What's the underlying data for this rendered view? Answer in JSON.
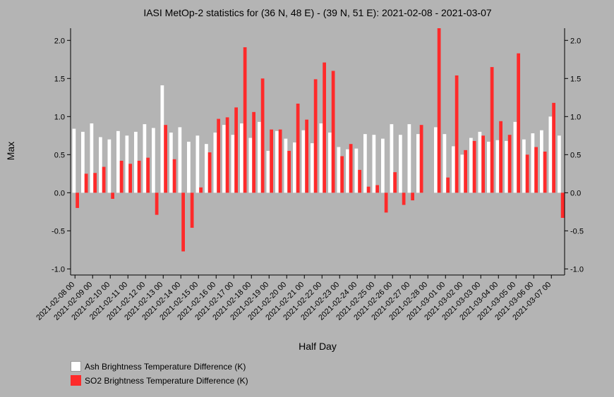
{
  "chart_data": {
    "type": "bar",
    "title": "IASI MetOp-2 statistics for (36 N, 48 E) - (39 N, 51 E): 2021-02-08 - 2021-03-07",
    "xlabel": "Half Day",
    "ylabel": "Max",
    "ylim": [
      -1.08,
      2.16
    ],
    "yticks": [
      "2.0",
      "1.5",
      "1.0",
      "0.5",
      "0.0",
      "-0.5",
      "-1.0"
    ],
    "ytick_values": [
      2.0,
      1.5,
      1.0,
      0.5,
      0.0,
      -0.5,
      -1.0
    ],
    "xtick_labels": [
      "2021-02-08 00",
      "2021-02-09 00",
      "2021-02-10 00",
      "2021-02-11 00",
      "2021-02-12 00",
      "2021-02-13 00",
      "2021-02-14 00",
      "2021-02-15 00",
      "2021-02-16 00",
      "2021-02-17 00",
      "2021-02-18 00",
      "2021-02-19 00",
      "2021-02-20 00",
      "2021-02-21 00",
      "2021-02-22 00",
      "2021-02-23 00",
      "2021-02-24 00",
      "2021-02-25 00",
      "2021-02-26 00",
      "2021-02-27 00",
      "2021-02-28 00",
      "2021-03-01 00",
      "2021-03-02 00",
      "2021-03-03 00",
      "2021-03-04 00",
      "2021-03-05 00",
      "2021-03-06 00",
      "2021-03-07 00"
    ],
    "categories": [
      "2021-02-08 00",
      "2021-02-08 12",
      "2021-02-09 00",
      "2021-02-09 12",
      "2021-02-10 00",
      "2021-02-10 12",
      "2021-02-11 00",
      "2021-02-11 12",
      "2021-02-12 00",
      "2021-02-12 12",
      "2021-02-13 00",
      "2021-02-13 12",
      "2021-02-14 00",
      "2021-02-14 12",
      "2021-02-15 00",
      "2021-02-15 12",
      "2021-02-16 00",
      "2021-02-16 12",
      "2021-02-17 00",
      "2021-02-17 12",
      "2021-02-18 00",
      "2021-02-18 12",
      "2021-02-19 00",
      "2021-02-19 12",
      "2021-02-20 00",
      "2021-02-20 12",
      "2021-02-21 00",
      "2021-02-21 12",
      "2021-02-22 00",
      "2021-02-22 12",
      "2021-02-23 00",
      "2021-02-23 12",
      "2021-02-24 00",
      "2021-02-24 12",
      "2021-02-25 00",
      "2021-02-25 12",
      "2021-02-26 00",
      "2021-02-26 12",
      "2021-02-27 00",
      "2021-02-27 12",
      "2021-02-28 00",
      "2021-02-28 12",
      "2021-03-01 00",
      "2021-03-01 12",
      "2021-03-02 00",
      "2021-03-02 12",
      "2021-03-03 00",
      "2021-03-03 12",
      "2021-03-04 00",
      "2021-03-04 12",
      "2021-03-05 00",
      "2021-03-05 12",
      "2021-03-06 00",
      "2021-03-06 12",
      "2021-03-07 00",
      "2021-03-07 12"
    ],
    "series": [
      {
        "name": "Ash Brightness Temperature Difference (K)",
        "color": "#ffffff",
        "values": [
          0.84,
          0.8,
          0.91,
          0.73,
          0.7,
          0.81,
          0.75,
          0.8,
          0.9,
          0.85,
          1.41,
          0.79,
          0.86,
          0.67,
          0.75,
          0.64,
          0.79,
          0.89,
          0.76,
          0.91,
          0.72,
          0.93,
          0.55,
          0.81,
          0.71,
          0.66,
          0.82,
          0.65,
          0.91,
          0.79,
          0.6,
          0.57,
          0.58,
          0.77,
          0.76,
          0.71,
          0.9,
          0.76,
          0.9,
          0.77,
          null,
          0.86,
          0.77,
          0.61,
          0.5,
          0.72,
          0.8,
          0.67,
          0.69,
          0.68,
          0.93,
          0.7,
          0.78,
          0.82,
          1.0,
          0.75
        ]
      },
      {
        "name": "SO2 Brightness Temperature Difference (K)",
        "color": "#ff2a2a",
        "values": [
          -0.2,
          0.25,
          0.26,
          0.34,
          -0.08,
          0.42,
          0.38,
          0.42,
          0.46,
          -0.29,
          0.89,
          0.44,
          -0.77,
          -0.46,
          0.07,
          0.53,
          0.97,
          0.99,
          1.12,
          1.91,
          1.06,
          1.5,
          0.83,
          0.83,
          0.55,
          1.17,
          0.96,
          1.49,
          1.71,
          1.6,
          0.48,
          0.64,
          0.3,
          0.08,
          0.1,
          -0.26,
          0.27,
          -0.16,
          -0.1,
          0.89,
          null,
          2.16,
          0.2,
          1.54,
          0.56,
          0.68,
          0.75,
          1.65,
          0.94,
          0.76,
          1.83,
          0.5,
          0.6,
          0.54,
          1.18,
          -0.33
        ]
      }
    ],
    "legend_position": "bottom-left",
    "grid": false
  }
}
